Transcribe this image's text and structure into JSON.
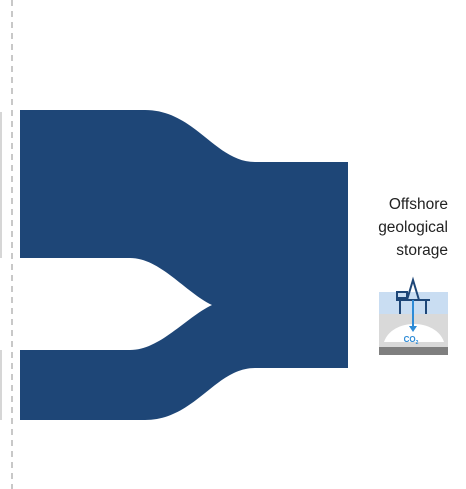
{
  "label": {
    "lines": [
      "Offshore",
      "geological",
      "storage"
    ]
  },
  "icon": {
    "text": "CO",
    "subscript": "2"
  }
}
